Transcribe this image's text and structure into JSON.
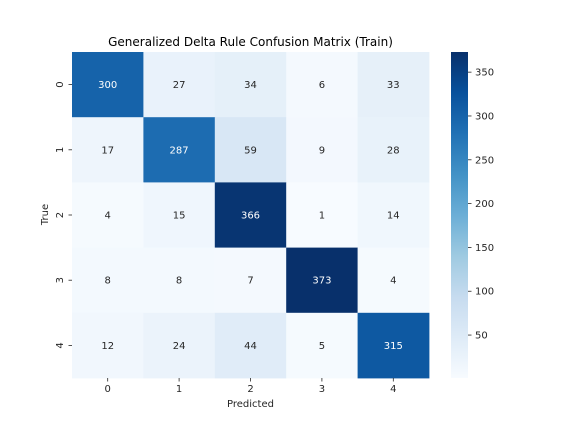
{
  "chart_data": {
    "type": "heatmap",
    "title": "Generalized Delta Rule Confusion Matrix (Train)",
    "xlabel": "Predicted",
    "ylabel": "True",
    "x_categories": [
      "0",
      "1",
      "2",
      "3",
      "4"
    ],
    "y_categories": [
      "0",
      "1",
      "2",
      "3",
      "4"
    ],
    "values": [
      [
        300,
        27,
        34,
        6,
        33
      ],
      [
        17,
        287,
        59,
        9,
        28
      ],
      [
        4,
        15,
        366,
        1,
        14
      ],
      [
        8,
        8,
        7,
        373,
        4
      ],
      [
        12,
        24,
        44,
        5,
        315
      ]
    ],
    "colorscale": "Blues",
    "vmin": 1,
    "vmax": 373,
    "colorbar_ticks": [
      50,
      100,
      150,
      200,
      250,
      300,
      350
    ],
    "colorbar_tick_labels": [
      "50",
      "100",
      "150",
      "200",
      "250",
      "300",
      "350"
    ],
    "colors": {
      "low": "#f7fbff",
      "high": "#08306b",
      "annot_light": "#ffffff",
      "annot_dark": "#262626",
      "axis_text": "#262626"
    }
  }
}
